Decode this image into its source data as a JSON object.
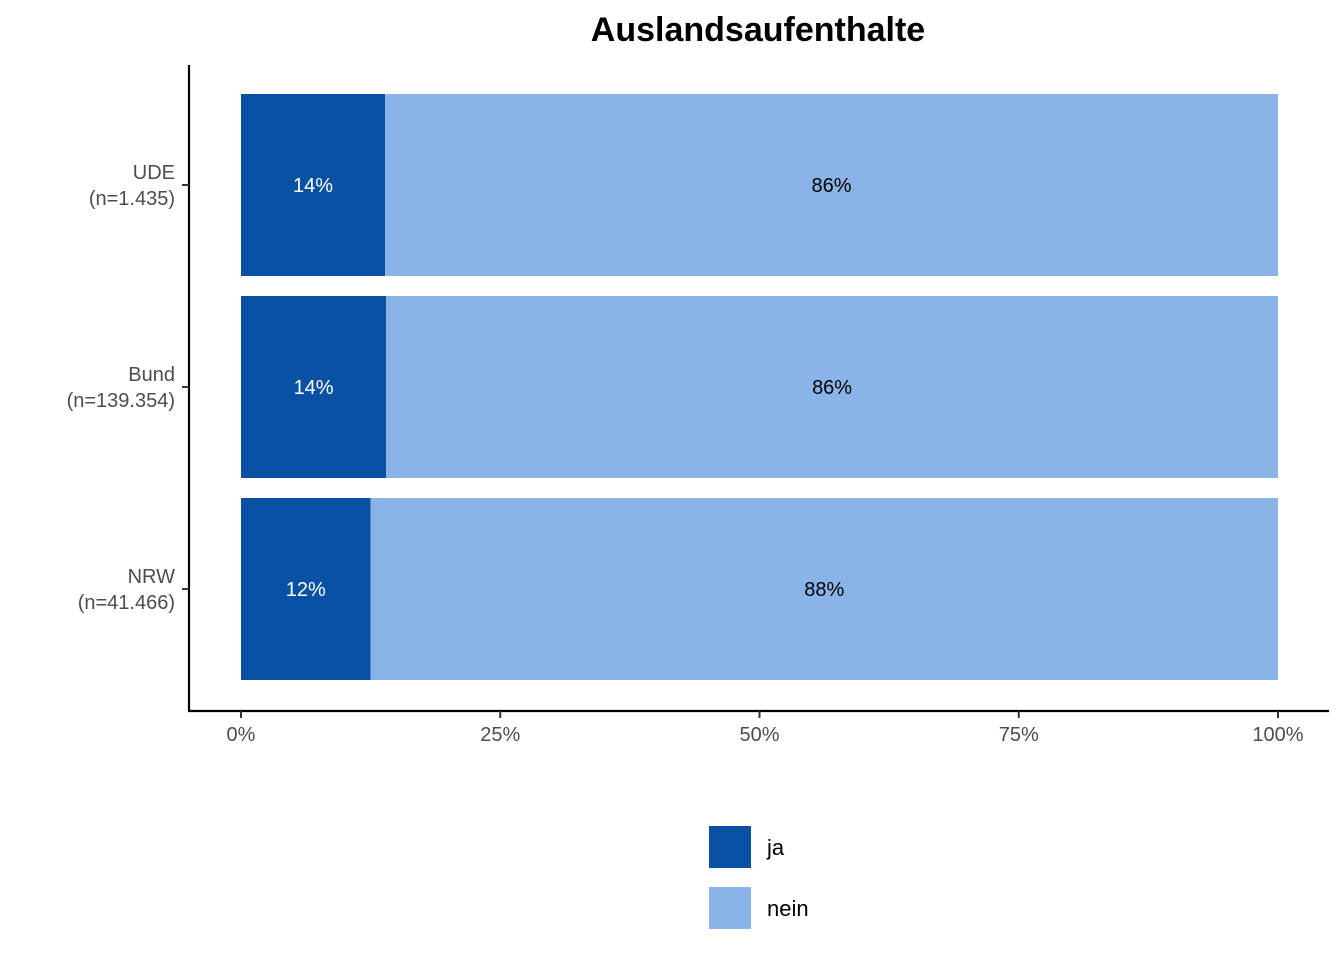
{
  "chart_data": {
    "type": "bar",
    "orientation": "horizontal",
    "stacked": true,
    "title": "Auslandsaufenthalte",
    "xlabel": "",
    "ylabel": "",
    "xlim": [
      0,
      100
    ],
    "x_ticks": [
      "0%",
      "25%",
      "50%",
      "75%",
      "100%"
    ],
    "x_tick_values": [
      0,
      25,
      50,
      75,
      100
    ],
    "categories": [
      {
        "name": "UDE",
        "n": "(n=1.435)"
      },
      {
        "name": "Bund",
        "n": "(n=139.354)"
      },
      {
        "name": "NRW",
        "n": "(n=41.466)"
      }
    ],
    "series": [
      {
        "name": "ja",
        "color": "#0a51a4",
        "label_color": "#ffffff",
        "values": [
          13.9,
          14.0,
          12.5
        ],
        "labels": [
          "14%",
          "14%",
          "12%"
        ]
      },
      {
        "name": "nein",
        "color": "#8ab4e7",
        "label_color": "#000000",
        "values": [
          86.1,
          86.0,
          87.5
        ],
        "labels": [
          "86%",
          "86%",
          "88%"
        ]
      }
    ],
    "legend_position": "bottom",
    "grid": false
  }
}
